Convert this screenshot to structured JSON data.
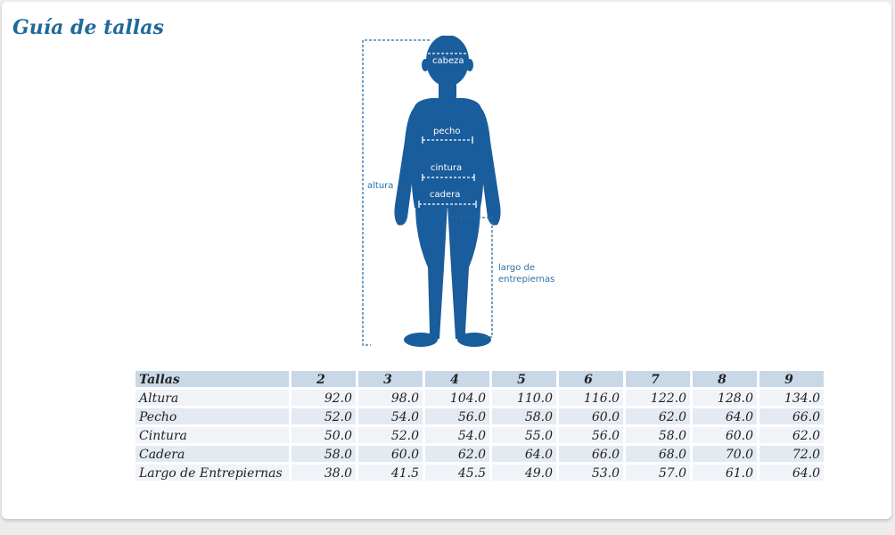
{
  "page": {
    "title": "Guía de tallas"
  },
  "figure": {
    "labels": {
      "cabeza": "cabeza",
      "pecho": "pecho",
      "cintura": "cintura",
      "cadera": "cadera",
      "altura": "altura",
      "largo_line1": "largo de",
      "largo_line2": "entrepiernas"
    },
    "colors": {
      "silhouette": "#1a5d9c",
      "guide": "#2c6ea3"
    }
  },
  "table": {
    "header": "Tallas",
    "sizes": [
      "2",
      "3",
      "4",
      "5",
      "6",
      "7",
      "8",
      "9"
    ],
    "rows": [
      {
        "label": "Altura",
        "values": [
          "92.0",
          "98.0",
          "104.0",
          "110.0",
          "116.0",
          "122.0",
          "128.0",
          "134.0"
        ]
      },
      {
        "label": "Pecho",
        "values": [
          "52.0",
          "54.0",
          "56.0",
          "58.0",
          "60.0",
          "62.0",
          "64.0",
          "66.0"
        ]
      },
      {
        "label": "Cintura",
        "values": [
          "50.0",
          "52.0",
          "54.0",
          "55.0",
          "56.0",
          "58.0",
          "60.0",
          "62.0"
        ]
      },
      {
        "label": "Cadera",
        "values": [
          "58.0",
          "60.0",
          "62.0",
          "64.0",
          "66.0",
          "68.0",
          "70.0",
          "72.0"
        ]
      },
      {
        "label": "Largo de Entrepiernas",
        "values": [
          "38.0",
          "41.5",
          "45.5",
          "49.0",
          "53.0",
          "57.0",
          "61.0",
          "64.0"
        ]
      }
    ]
  }
}
